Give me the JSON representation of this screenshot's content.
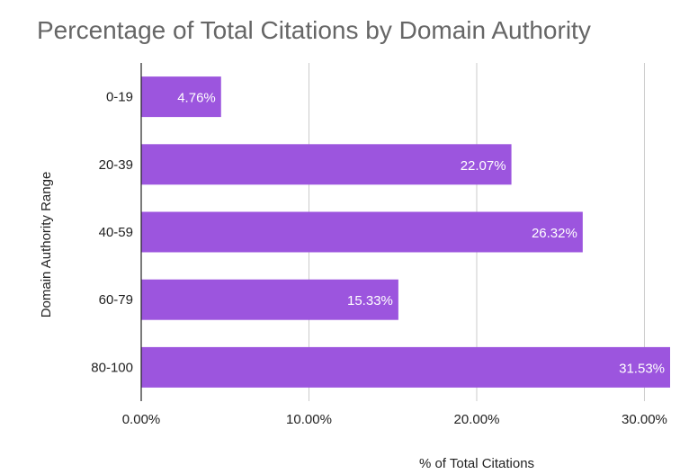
{
  "chart_data": {
    "type": "bar",
    "orientation": "horizontal",
    "title": "Percentage of Total Citations by Domain Authority",
    "xlabel": "% of Total Citations",
    "ylabel": "Domain Authority Range",
    "categories": [
      "0-19",
      "20-39",
      "40-59",
      "60-79",
      "80-100"
    ],
    "values": [
      4.76,
      22.07,
      26.32,
      15.33,
      31.53
    ],
    "data_labels": [
      "4.76%",
      "22.07%",
      "26.32%",
      "15.33%",
      "31.53%"
    ],
    "xlim": [
      0,
      31.53
    ],
    "xticks": [
      0,
      10,
      20,
      30
    ],
    "xtick_labels": [
      "0.00%",
      "10.00%",
      "20.00%",
      "30.00%"
    ],
    "grid": true,
    "legend": "none",
    "colors": {
      "bar": "#9c55de",
      "title": "#666666",
      "text": "#222222",
      "grid": "#cccccc",
      "axis": "#222222",
      "data_label": "#ffffff"
    }
  }
}
